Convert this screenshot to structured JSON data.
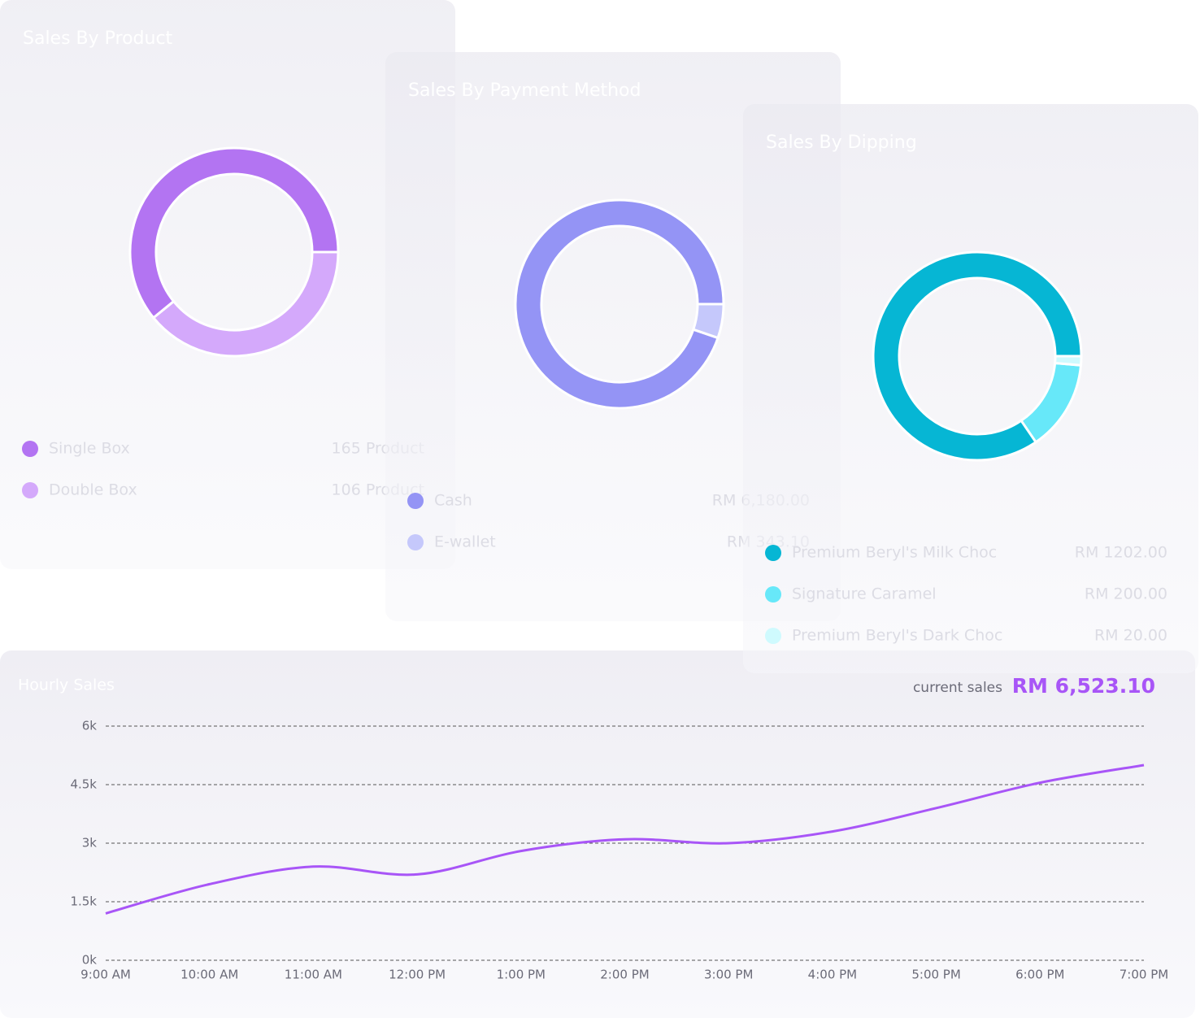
{
  "chart_data": [
    {
      "type": "pie",
      "title": "Sales By Product",
      "categories": [
        "Single Box",
        "Double Box"
      ],
      "values": [
        165,
        106
      ],
      "value_labels": [
        "165 Product",
        "106 Product"
      ],
      "colors": [
        "#b374f2",
        "#d4a9fb"
      ]
    },
    {
      "type": "pie",
      "title": "Sales By Payment Method",
      "categories": [
        "Cash",
        "E-wallet"
      ],
      "values": [
        6180,
        343.1
      ],
      "value_labels": [
        "RM 6,180.00",
        "RM 343.10"
      ],
      "colors": [
        "#9494f5",
        "#c5c8fb"
      ]
    },
    {
      "type": "pie",
      "title": "Sales By Dipping",
      "categories": [
        "Premium Beryl's Milk Choc",
        "Signature Caramel",
        "Premium Beryl's Dark Choc"
      ],
      "values": [
        1202,
        200,
        20
      ],
      "value_labels": [
        "RM 1202.00",
        "RM 200.00",
        "RM 20.00"
      ],
      "colors": [
        "#06b6d4",
        "#67e8f9",
        "#cffafe"
      ]
    },
    {
      "type": "line",
      "title": "Hourly Sales",
      "summary_label": "current sales",
      "summary_value": "RM 6,523.10",
      "categories": [
        "9:00 AM",
        "10:00 AM",
        "11:00 AM",
        "12:00 PM",
        "1:00 PM",
        "2:00 PM",
        "3:00 PM",
        "4:00 PM",
        "5:00 PM",
        "6:00 PM",
        "7:00 PM"
      ],
      "values": [
        1200,
        1950,
        2400,
        2200,
        2800,
        3100,
        3000,
        3300,
        3900,
        4550,
        5000
      ],
      "color": "#a855f7",
      "ylim": [
        0,
        6000
      ],
      "yticks": [
        {
          "value": 0,
          "label": "0k"
        },
        {
          "value": 1500,
          "label": "1.5k"
        },
        {
          "value": 3000,
          "label": "3k"
        },
        {
          "value": 4500,
          "label": "4.5k"
        },
        {
          "value": 6000,
          "label": "6k"
        }
      ],
      "grid": true
    }
  ]
}
